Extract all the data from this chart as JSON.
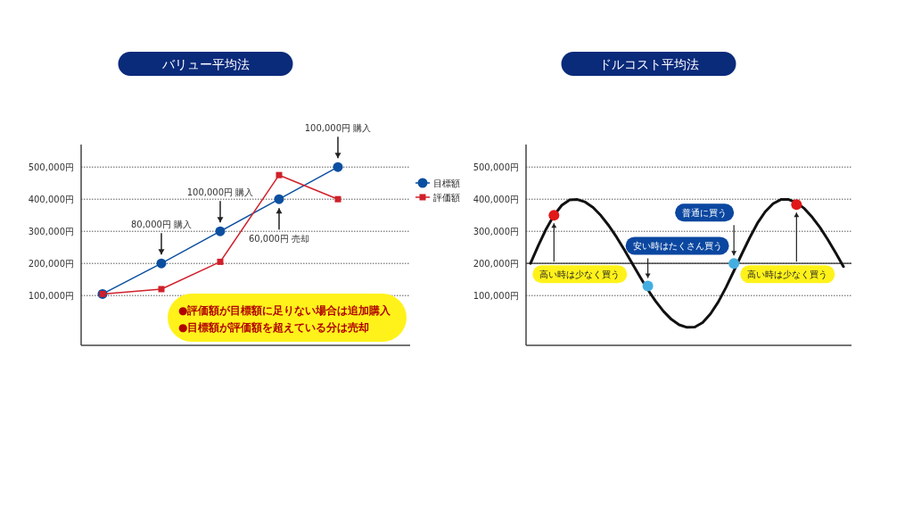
{
  "chart_data": [
    {
      "type": "line",
      "title": "バリュー平均法",
      "categories": [
        null,
        null,
        null,
        null,
        null
      ],
      "series": [
        {
          "name": "目標額",
          "color": "#0b4fa0",
          "marker": "circle",
          "values": [
            105000,
            200000,
            300000,
            400000,
            500000
          ]
        },
        {
          "name": "評価額",
          "color": "#d0202a",
          "marker": "square",
          "values": [
            105000,
            120000,
            205000,
            475000,
            400000
          ]
        }
      ],
      "ylim": [
        -55000,
        570000
      ],
      "yticks": [
        {
          "value": 100000,
          "label": "100,000円"
        },
        {
          "value": 200000,
          "label": "200,000円"
        },
        {
          "value": 300000,
          "label": "300,000円"
        },
        {
          "value": 400000,
          "label": "400,000円"
        },
        {
          "value": 500000,
          "label": "500,000円"
        }
      ],
      "grid": "y",
      "legend": "right",
      "annotations": [
        "80,000円 購入",
        "100,000円 購入",
        "60,000円 売却",
        "100,000円 購入",
        "●評価額が目標額に足りない場合は追加購入",
        "●目標額が評価額を超えている分は売却"
      ]
    },
    {
      "type": "line",
      "title": "ドルコスト平均法",
      "categories": [
        null,
        null,
        null,
        null,
        null,
        null,
        null,
        null,
        null,
        null,
        null,
        null,
        null,
        null,
        null,
        null,
        null,
        null,
        null,
        null,
        null,
        null,
        null,
        null,
        null,
        null,
        null,
        null,
        null,
        null,
        null,
        null,
        null,
        null,
        null,
        null,
        null,
        null,
        null,
        null,
        null
      ],
      "series": [
        {
          "color": "#111111",
          "marker": "none",
          "values": [
            200000,
            256000,
            307000,
            350000,
            381000,
            398000,
            399000,
            391000,
            374000,
            349000,
            318000,
            282000,
            242000,
            200000,
            158000,
            118000,
            82000,
            51000,
            26000,
            9000,
            1000,
            2000,
            16000,
            43000,
            80000,
            126000,
            177000,
            229000,
            279000,
            325000,
            361000,
            386000,
            399000,
            399000,
            389000,
            371000,
            344000,
            312000,
            274000,
            233000,
            190000
          ]
        },
        {
          "type": "scatter",
          "color": "#e01818",
          "marker": "circle",
          "values": [
            null,
            null,
            null,
            350000,
            null,
            null,
            null,
            null,
            null,
            null,
            null,
            null,
            null,
            null,
            null,
            null,
            null,
            null,
            null,
            null,
            null,
            null,
            null,
            null,
            null,
            null,
            null,
            null,
            null,
            null,
            null,
            null,
            null,
            null,
            383000,
            null,
            null,
            null,
            null,
            null,
            null
          ]
        },
        {
          "type": "scatter",
          "color": "#45aee0",
          "marker": "circle",
          "values": [
            null,
            null,
            null,
            null,
            null,
            null,
            null,
            null,
            null,
            null,
            null,
            null,
            null,
            null,
            null,
            130000,
            null,
            null,
            null,
            null,
            null,
            null,
            null,
            null,
            null,
            null,
            200000,
            null,
            null,
            null,
            null,
            null,
            null,
            null,
            null,
            null,
            null,
            null,
            null,
            null,
            null
          ]
        }
      ],
      "ylim": [
        -55000,
        570000
      ],
      "yticks": [
        {
          "value": 100000,
          "label": "100,000円"
        },
        {
          "value": 200000,
          "label": "200,000円"
        },
        {
          "value": 300000,
          "label": "300,000円"
        },
        {
          "value": 400000,
          "label": "400,000円"
        },
        {
          "value": 500000,
          "label": "500,000円"
        }
      ],
      "grid": "y",
      "ref_lines": [
        {
          "axis": "y",
          "value": 200000,
          "color": "#333333",
          "line_style": "solid"
        }
      ],
      "annotations": [
        "高い時は少なく買う",
        "安い時はたくさん買う",
        "普通に買う",
        "高い時は少なく買う"
      ]
    }
  ]
}
